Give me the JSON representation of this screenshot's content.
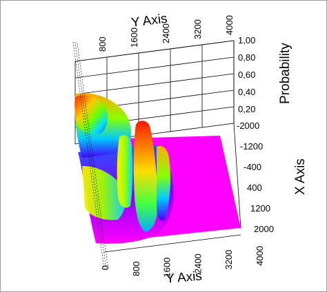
{
  "chart_data": {
    "type": "surface",
    "title": "",
    "y_axis_top": {
      "label": "Y Axis",
      "ticks": [
        "800",
        "1600",
        "2400",
        "3200",
        "4000"
      ]
    },
    "y_axis_bottom": {
      "label": "Y Axis",
      "ticks": [
        "0",
        "800",
        "1600",
        "2400",
        "3200",
        "4000"
      ]
    },
    "z_axis": {
      "label": "Probability",
      "ticks": [
        "1,00",
        "0,80",
        "0,60",
        "0,40",
        "0,20"
      ],
      "range": [
        0,
        1
      ]
    },
    "x_axis": {
      "label": "X Axis",
      "ticks": [
        "-2000",
        "-1200",
        "-400",
        "400",
        "1200",
        "2000"
      ],
      "range": [
        -2000,
        2000
      ]
    },
    "colormap": [
      "#ff00ff",
      "#0000ff",
      "#00ffff",
      "#00ff00",
      "#ffff00",
      "#ff0000"
    ],
    "floor_color": "#ff00ff",
    "grid": true
  }
}
